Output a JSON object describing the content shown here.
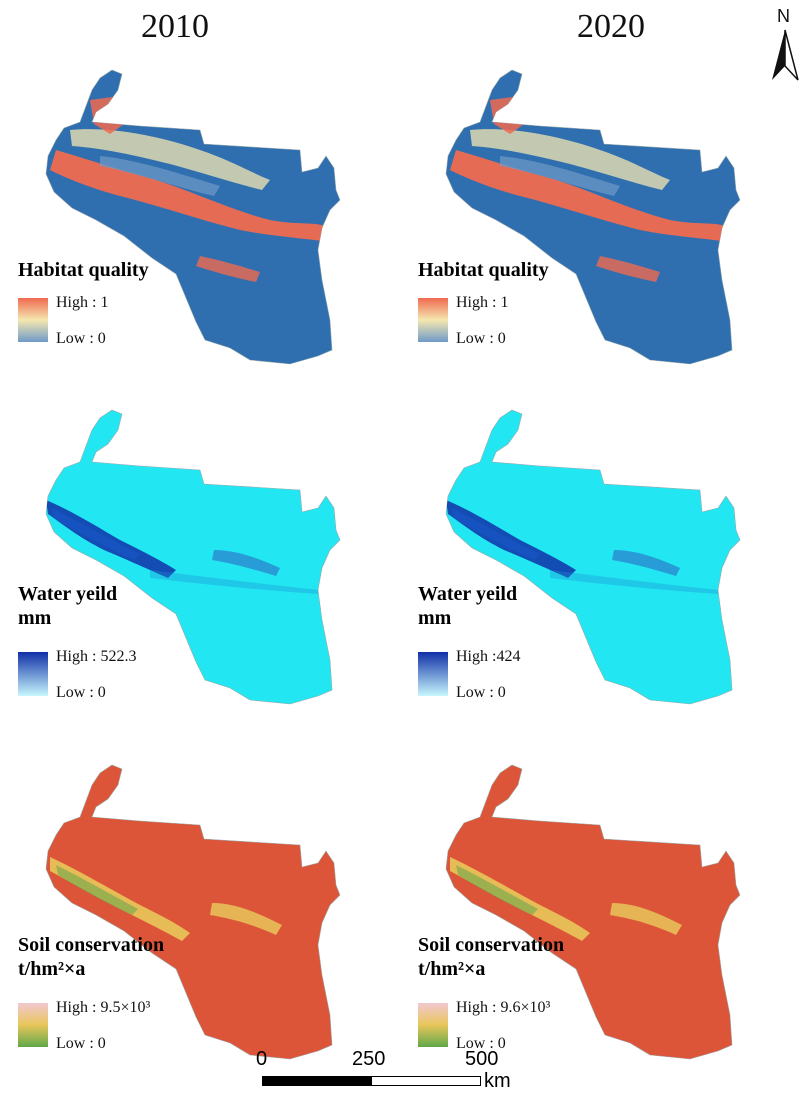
{
  "columns": [
    {
      "year": "2010"
    },
    {
      "year": "2020"
    }
  ],
  "north_arrow": {
    "label": "N"
  },
  "panels": [
    {
      "id": "hq-2010",
      "title_line1": "Habitat quality",
      "title_line2": "",
      "high": "High : 1",
      "low": "Low : 0",
      "colors": {
        "base": "#2f6fb0",
        "high": "#ef6a50",
        "mid": "#f5e7b0",
        "low": "#6f9ac8"
      }
    },
    {
      "id": "hq-2020",
      "title_line1": "Habitat quality",
      "title_line2": "",
      "high": "High : 1",
      "low": "Low : 0",
      "colors": {
        "base": "#2f6fb0",
        "high": "#ef6a50",
        "mid": "#f5e7b0",
        "low": "#6f9ac8"
      }
    },
    {
      "id": "wy-2010",
      "title_line1": "Water yeild",
      "title_line2": "mm",
      "high": "High : 522.3",
      "low": "Low : 0",
      "colors": {
        "base": "#22e6f2",
        "high": "#1030a8",
        "low": "#c8f6fc"
      }
    },
    {
      "id": "wy-2020",
      "title_line1": "Water yeild",
      "title_line2": "mm",
      "high": "High :424",
      "low": "Low : 0",
      "colors": {
        "base": "#22e6f2",
        "high": "#1030a8",
        "low": "#c8f6fc"
      }
    },
    {
      "id": "sc-2010",
      "title_line1": "Soil conservation",
      "title_line2": "t/hm²×a",
      "high": "High : 9.5×10³",
      "low": "Low : 0",
      "colors": {
        "base": "#dc5538",
        "high": "#f2c8d2",
        "mid": "#e8c65a",
        "low": "#5fa84a"
      }
    },
    {
      "id": "sc-2020",
      "title_line1": "Soil conservation",
      "title_line2": "t/hm²×a",
      "high": "High : 9.6×10³",
      "low": "Low : 0",
      "colors": {
        "base": "#dc5538",
        "high": "#f2c8d2",
        "mid": "#e8c65a",
        "low": "#5fa84a"
      }
    }
  ],
  "scale_bar": {
    "ticks": [
      "0",
      "250",
      "500"
    ],
    "unit": "km"
  }
}
